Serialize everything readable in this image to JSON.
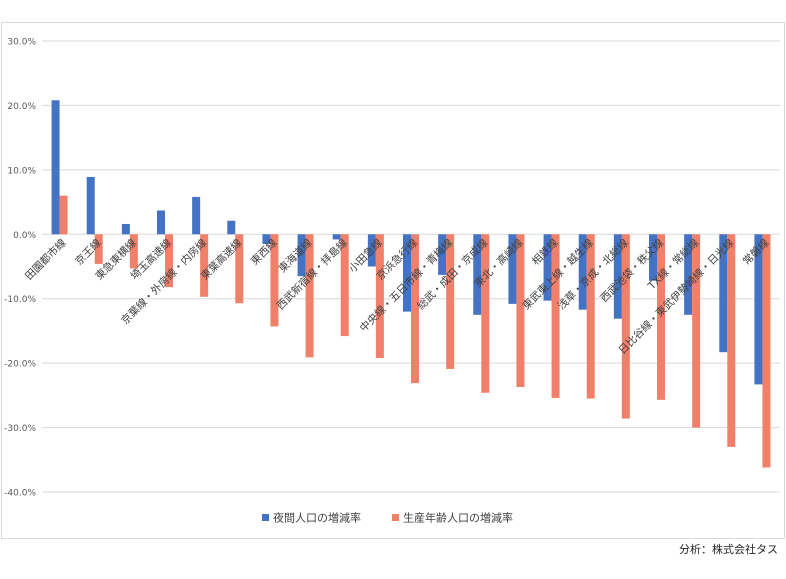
{
  "chart_data": {
    "type": "bar",
    "categories": [
      "田園都市線",
      "京王線",
      "東急東横線",
      "埼玉高速線",
      "京葉線・外房線・内房線",
      "東葉高速線",
      "東西線",
      "東海道線",
      "西武新宿線・拝島線",
      "小田急線",
      "京浜急行線",
      "中央線・五日市線・青梅線",
      "総武・成田・京成線",
      "東北・高崎線",
      "相鉄線",
      "東武東上線・越生線",
      "浅草・京成・北総線",
      "西武池袋・秩父線",
      "TX線・常総線",
      "日比谷線・東武伊勢崎線・日光線",
      "常磐線"
    ],
    "series": [
      {
        "name": "夜間人口の増減率",
        "color": "#4472c4",
        "values": [
          20.8,
          8.9,
          1.6,
          3.7,
          5.8,
          2.1,
          -1.5,
          -6.5,
          -0.8,
          -5.0,
          -12.0,
          -6.3,
          -12.5,
          -10.8,
          -10.3,
          -11.7,
          -13.1,
          -7.2,
          -12.5,
          -18.3,
          -23.3
        ]
      },
      {
        "name": "生産年齢人口の増減率",
        "color": "#f0806a",
        "values": [
          6.0,
          -4.6,
          -5.3,
          -8.2,
          -9.7,
          -10.7,
          -14.3,
          -19.1,
          -15.8,
          -19.2,
          -23.1,
          -20.9,
          -24.6,
          -23.7,
          -25.4,
          -25.5,
          -28.6,
          -25.7,
          -30.0,
          -33.0,
          -36.2
        ]
      }
    ],
    "yticks": [
      "30.0%",
      "20.0%",
      "10.0%",
      "0.0%",
      "-10.0%",
      "-20.0%",
      "-30.0%",
      "-40.0%"
    ],
    "ylim": [
      -40,
      30
    ],
    "grid": true,
    "legend_position": "bottom"
  },
  "source_text": "分析：株式会社タス"
}
